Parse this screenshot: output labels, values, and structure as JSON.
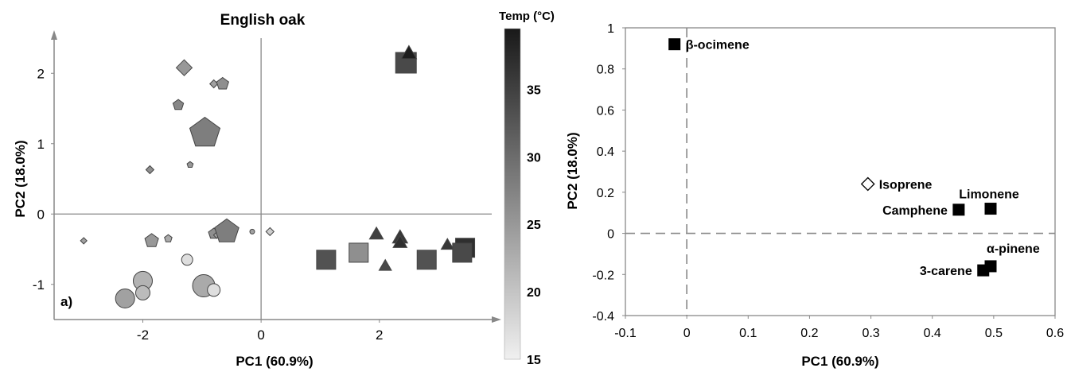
{
  "chart_data": [
    {
      "panel": "a",
      "type": "scatter",
      "title": "English oak",
      "panel_label": "a)",
      "xlabel": "PC1 (60.9%)",
      "ylabel": "PC2 (18.0%)",
      "xlim": [
        -3.5,
        3.9
      ],
      "ylim": [
        -1.5,
        2.5
      ],
      "xticks": [
        -2,
        0,
        2
      ],
      "yticks": [
        2,
        1,
        0,
        -1
      ],
      "colorbar": {
        "title": "Temp (°C)",
        "range": [
          15,
          39.5
        ],
        "ticks": [
          15,
          20,
          25,
          30,
          35
        ]
      },
      "points": [
        {
          "shape": "diamond",
          "x": -1.3,
          "y": 2.08,
          "size": 10,
          "temp": 25
        },
        {
          "shape": "diamond",
          "x": -0.8,
          "y": 1.85,
          "size": 5,
          "temp": 24
        },
        {
          "shape": "pentagon",
          "x": -0.65,
          "y": 1.85,
          "size": 8,
          "temp": 26
        },
        {
          "shape": "pentagon",
          "x": -1.4,
          "y": 1.55,
          "size": 7,
          "temp": 27
        },
        {
          "shape": "pentagon",
          "x": -0.95,
          "y": 1.15,
          "size": 20,
          "temp": 28
        },
        {
          "shape": "diamond",
          "x": -1.88,
          "y": 0.63,
          "size": 5,
          "temp": 26
        },
        {
          "shape": "pentagon",
          "x": -1.2,
          "y": 0.7,
          "size": 4,
          "temp": 25
        },
        {
          "shape": "diamond",
          "x": -3.0,
          "y": -0.38,
          "size": 4,
          "temp": 24
        },
        {
          "shape": "pentagon",
          "x": -1.85,
          "y": -0.38,
          "size": 9,
          "temp": 25
        },
        {
          "shape": "pentagon",
          "x": -1.57,
          "y": -0.35,
          "size": 5,
          "temp": 23
        },
        {
          "shape": "pentagon",
          "x": -0.8,
          "y": -0.28,
          "size": 7,
          "temp": 26
        },
        {
          "shape": "diamond",
          "x": -0.75,
          "y": -0.3,
          "size": 4,
          "temp": 24
        },
        {
          "shape": "pentagon",
          "x": -0.58,
          "y": -0.25,
          "size": 16,
          "temp": 28
        },
        {
          "shape": "circle",
          "x": -0.15,
          "y": -0.25,
          "size": 3,
          "temp": 24
        },
        {
          "shape": "diamond",
          "x": 0.15,
          "y": -0.25,
          "size": 5,
          "temp": 19
        },
        {
          "shape": "circle",
          "x": -1.25,
          "y": -0.65,
          "size": 7,
          "temp": 17
        },
        {
          "shape": "circle",
          "x": -2.0,
          "y": -0.95,
          "size": 12,
          "temp": 22
        },
        {
          "shape": "circle",
          "x": -2.0,
          "y": -1.12,
          "size": 9,
          "temp": 21
        },
        {
          "shape": "circle",
          "x": -2.3,
          "y": -1.2,
          "size": 12,
          "temp": 24
        },
        {
          "shape": "circle",
          "x": -0.97,
          "y": -1.02,
          "size": 14,
          "temp": 23
        },
        {
          "shape": "circle",
          "x": -0.8,
          "y": -1.08,
          "size": 8,
          "temp": 17
        },
        {
          "shape": "square",
          "x": 2.45,
          "y": 2.15,
          "size": 13,
          "temp": 34
        },
        {
          "shape": "triangle",
          "x": 2.5,
          "y": 2.27,
          "size": 11,
          "temp": 39
        },
        {
          "shape": "square",
          "x": 1.1,
          "y": -0.65,
          "size": 12,
          "temp": 33
        },
        {
          "shape": "square",
          "x": 1.65,
          "y": -0.55,
          "size": 12,
          "temp": 26
        },
        {
          "shape": "triangle",
          "x": 1.95,
          "y": -0.3,
          "size": 10,
          "temp": 35
        },
        {
          "shape": "triangle",
          "x": 2.35,
          "y": -0.35,
          "size": 11,
          "temp": 36
        },
        {
          "shape": "triangle",
          "x": 2.35,
          "y": -0.42,
          "size": 10,
          "temp": 37
        },
        {
          "shape": "triangle",
          "x": 2.1,
          "y": -0.75,
          "size": 9,
          "temp": 34
        },
        {
          "shape": "square",
          "x": 2.8,
          "y": -0.65,
          "size": 12,
          "temp": 33
        },
        {
          "shape": "triangle",
          "x": 3.15,
          "y": -0.45,
          "size": 9,
          "temp": 36
        },
        {
          "shape": "square",
          "x": 3.45,
          "y": -0.48,
          "size": 12,
          "temp": 37
        },
        {
          "shape": "square",
          "x": 3.4,
          "y": -0.55,
          "size": 12,
          "temp": 34
        }
      ]
    },
    {
      "panel": "b",
      "type": "scatter",
      "xlabel": "PC1 (60.9%)",
      "ylabel": "PC2 (18.0%)",
      "xlim": [
        -0.1,
        0.6
      ],
      "ylim": [
        -0.4,
        1.0
      ],
      "xticks": [
        -0.1,
        0,
        0.1,
        0.2,
        0.3,
        0.4,
        0.5,
        0.6
      ],
      "xtick_labels": [
        "-0.1",
        "0",
        "0.1",
        "0.2",
        "0.3",
        "0.4",
        "0.5",
        "0.6"
      ],
      "yticks": [
        -0.4,
        -0.2,
        0,
        0.2,
        0.4,
        0.6,
        0.8,
        1
      ],
      "ytick_labels": [
        "-0.4",
        "-0.2",
        "0",
        "0.2",
        "0.4",
        "0.6",
        "0.8",
        "1"
      ],
      "points": [
        {
          "label": "β-ocimene",
          "x": -0.02,
          "y": 0.92,
          "marker": "square-filled",
          "label_side": "right"
        },
        {
          "label": "Isoprene",
          "x": 0.295,
          "y": 0.24,
          "marker": "diamond-open",
          "label_side": "right"
        },
        {
          "label": "Limonene",
          "x": 0.495,
          "y": 0.12,
          "marker": "square-filled",
          "label_side": "above"
        },
        {
          "label": "Camphene",
          "x": 0.443,
          "y": 0.115,
          "marker": "square-filled",
          "label_side": "left"
        },
        {
          "label": "α-pinene",
          "x": 0.495,
          "y": -0.16,
          "marker": "square-filled",
          "label_side": "above-right"
        },
        {
          "label": "3-carene",
          "x": 0.483,
          "y": -0.18,
          "marker": "square-filled",
          "label_side": "left"
        }
      ]
    }
  ]
}
